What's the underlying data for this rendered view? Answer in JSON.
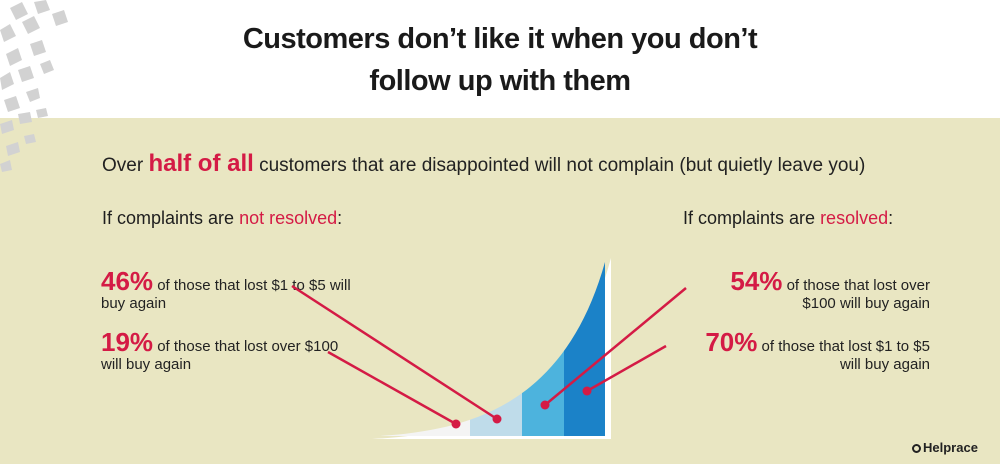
{
  "title": {
    "line1": "Customers don’t like it when you don’t",
    "line2": "follow up with them"
  },
  "headline": {
    "before": "Over ",
    "highlight": "half of all",
    "after": " customers that are disappointed will not complain (but quietly leave you)"
  },
  "not_resolved": {
    "label_before": "If complaints are ",
    "label_emph": "not resolved",
    "label_after": ":",
    "stats": [
      {
        "pct": "46%",
        "text": " of those that lost $1 to $5 will buy again"
      },
      {
        "pct": "19%",
        "text": " of those that lost over $100 will buy again"
      }
    ]
  },
  "resolved": {
    "label_before": "If complaints are ",
    "label_emph": "resolved",
    "label_after": ":",
    "stats": [
      {
        "pct": "54%",
        "text": " of those that lost over $100 will buy again"
      },
      {
        "pct": "70%",
        "text": " of those that lost $1 to $5 will buy again"
      }
    ]
  },
  "brand": "Helprace",
  "colors": {
    "accent": "#d41b45",
    "panel": "#e9e6c2",
    "segments": [
      "#f4f4f4",
      "#bfdcea",
      "#4db3dd",
      "#1b82c8"
    ]
  }
}
